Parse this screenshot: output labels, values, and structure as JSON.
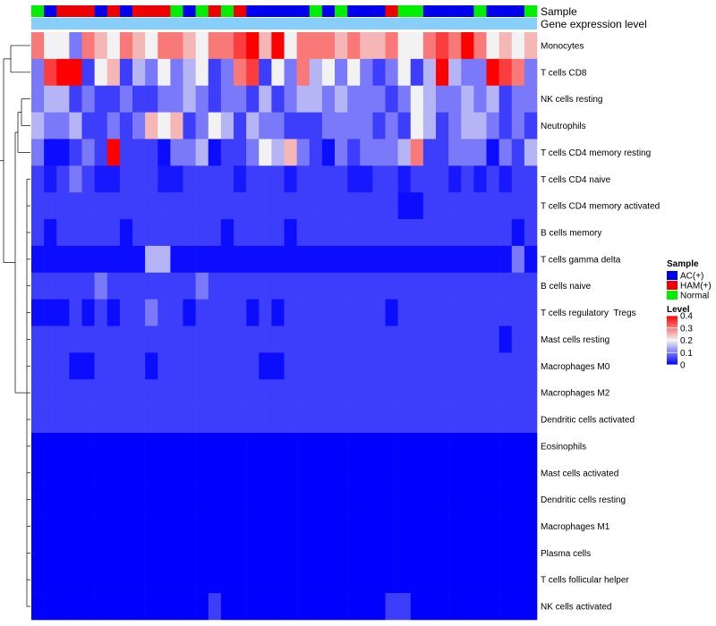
{
  "chart_data": {
    "type": "heatmap",
    "annotation_track_labels": [
      "Sample",
      "Gene expression level"
    ],
    "row_labels": [
      "Monocytes",
      "T cells CD8",
      "NK cells resting",
      "Neutrophils",
      "T cells CD4 memory resting",
      "T cells CD4 naive",
      "T cells CD4 memory activated",
      "B cells memory",
      "T cells gamma delta",
      "B cells naive",
      "T cells regulatory  Tregs",
      "Mast cells resting",
      "Macrophages M0",
      "Macrophages M2",
      "Dendritic cells activated",
      "Eosinophils",
      "Mast cells activated",
      "Dendritic cells resting",
      "Macrophages M1",
      "Plasma cells",
      "T cells follicular helper",
      "NK cells activated"
    ],
    "sample_groups": [
      "Normal",
      "AC(+)",
      "HAM(+)",
      "HAM(+)",
      "HAM(+)",
      "AC(+)",
      "HAM(+)",
      "AC(+)",
      "HAM(+)",
      "HAM(+)",
      "HAM(+)",
      "Normal",
      "AC(+)",
      "Normal",
      "HAM(+)",
      "Normal",
      "HAM(+)",
      "AC(+)",
      "AC(+)",
      "AC(+)",
      "AC(+)",
      "AC(+)",
      "Normal",
      "AC(+)",
      "Normal",
      "AC(+)",
      "AC(+)",
      "AC(+)",
      "HAM(+)",
      "Normal",
      "Normal",
      "AC(+)",
      "AC(+)",
      "AC(+)",
      "AC(+)",
      "Normal",
      "AC(+)",
      "AC(+)",
      "AC(+)",
      "Normal"
    ],
    "values": [
      [
        0.3,
        0.2,
        0.2,
        0.1,
        0.3,
        0.25,
        0.2,
        0.3,
        0.25,
        0.2,
        0.3,
        0.3,
        0.25,
        0.2,
        0.3,
        0.3,
        0.35,
        0.4,
        0.25,
        0.4,
        0.2,
        0.3,
        0.3,
        0.3,
        0.25,
        0.3,
        0.25,
        0.25,
        0.3,
        0.2,
        0.2,
        0.3,
        0.35,
        0.3,
        0.4,
        0.3,
        0.2,
        0.25,
        0.2,
        0.25
      ],
      [
        0.1,
        0.35,
        0.4,
        0.4,
        0.05,
        0.2,
        0.25,
        0.05,
        0.15,
        0.1,
        0.2,
        0.1,
        0.15,
        0.2,
        0.05,
        0.1,
        0.3,
        0.35,
        0.05,
        0.2,
        0.1,
        0.3,
        0.15,
        0.2,
        0.1,
        0.2,
        0.1,
        0.05,
        0.1,
        0.2,
        0.05,
        0.15,
        0.4,
        0.15,
        0.1,
        0.1,
        0.4,
        0.35,
        0.3,
        0.1
      ],
      [
        0.1,
        0.15,
        0.15,
        0.05,
        0.1,
        0.05,
        0.05,
        0.1,
        0.05,
        0.05,
        0.1,
        0.1,
        0.15,
        0.1,
        0.05,
        0.1,
        0.1,
        0.05,
        0.15,
        0.05,
        0.1,
        0.15,
        0.15,
        0.1,
        0.15,
        0.1,
        0.1,
        0.1,
        0.05,
        0.1,
        0.2,
        0.15,
        0.1,
        0.1,
        0.15,
        0.1,
        0.15,
        0.05,
        0.1,
        0.1
      ],
      [
        0.15,
        0.1,
        0.1,
        0.15,
        0.05,
        0.05,
        0.1,
        0.05,
        0.1,
        0.25,
        0.2,
        0.25,
        0.05,
        0.1,
        0.2,
        0.15,
        0.05,
        0.15,
        0.1,
        0.1,
        0.05,
        0.05,
        0.05,
        0.1,
        0.1,
        0.1,
        0.1,
        0.05,
        0.1,
        0.05,
        0.2,
        0.15,
        0.05,
        0.1,
        0.15,
        0.15,
        0.1,
        0.05,
        0.1,
        0.05
      ],
      [
        0.1,
        0.01,
        0.01,
        0.05,
        0.1,
        0.05,
        0.4,
        0.05,
        0.05,
        0.05,
        0.01,
        0.1,
        0.1,
        0.15,
        0.01,
        0.05,
        0.05,
        0.1,
        0.2,
        0.15,
        0.25,
        0.1,
        0.05,
        0.01,
        0.1,
        0.05,
        0.1,
        0.1,
        0.1,
        0.15,
        0.3,
        0.05,
        0.05,
        0.1,
        0.1,
        0.1,
        0.01,
        0.1,
        0.05,
        0.15
      ],
      [
        0.05,
        0.02,
        0.05,
        0.1,
        0.05,
        0.02,
        0.02,
        0.05,
        0.05,
        0.05,
        0.02,
        0.02,
        0.05,
        0.05,
        0.05,
        0.05,
        0.02,
        0.05,
        0.05,
        0.05,
        0.02,
        0.05,
        0.05,
        0.05,
        0.05,
        0.02,
        0.02,
        0.05,
        0.05,
        0.02,
        0.05,
        0.05,
        0.05,
        0.02,
        0.05,
        0.02,
        0.05,
        0.02,
        0.05,
        0.05
      ],
      [
        0.05,
        0.05,
        0.05,
        0.05,
        0.05,
        0.05,
        0.05,
        0.05,
        0.05,
        0.05,
        0.05,
        0.05,
        0.05,
        0.05,
        0.05,
        0.05,
        0.05,
        0.05,
        0.05,
        0.05,
        0.05,
        0.05,
        0.05,
        0.05,
        0.05,
        0.05,
        0.05,
        0.05,
        0.05,
        0.01,
        0.01,
        0.05,
        0.05,
        0.05,
        0.05,
        0.05,
        0.05,
        0.05,
        0.05,
        0.05
      ],
      [
        0.05,
        0.01,
        0.05,
        0.05,
        0.05,
        0.05,
        0.05,
        0.01,
        0.05,
        0.05,
        0.05,
        0.05,
        0.05,
        0.05,
        0.05,
        0.01,
        0.05,
        0.05,
        0.05,
        0.05,
        0.01,
        0.05,
        0.05,
        0.05,
        0.05,
        0.05,
        0.05,
        0.05,
        0.05,
        0.05,
        0.05,
        0.05,
        0.05,
        0.05,
        0.05,
        0.05,
        0.05,
        0.05,
        0.01,
        0.05
      ],
      [
        0.01,
        0.01,
        0.01,
        0.01,
        0.01,
        0.01,
        0.01,
        0.01,
        0.01,
        0.15,
        0.15,
        0.01,
        0.01,
        0.01,
        0.01,
        0.01,
        0.01,
        0.01,
        0.01,
        0.01,
        0.01,
        0.01,
        0.01,
        0.01,
        0.01,
        0.01,
        0.01,
        0.01,
        0.01,
        0.01,
        0.01,
        0.01,
        0.01,
        0.01,
        0.01,
        0.01,
        0.01,
        0.01,
        0.1,
        0.01
      ],
      [
        0.05,
        0.05,
        0.05,
        0.05,
        0.05,
        0.1,
        0.05,
        0.05,
        0.05,
        0.05,
        0.05,
        0.05,
        0.05,
        0.1,
        0.05,
        0.05,
        0.05,
        0.05,
        0.05,
        0.05,
        0.05,
        0.05,
        0.05,
        0.05,
        0.05,
        0.05,
        0.05,
        0.05,
        0.05,
        0.05,
        0.05,
        0.05,
        0.05,
        0.05,
        0.05,
        0.05,
        0.05,
        0.05,
        0.05,
        0.05
      ],
      [
        0.01,
        0.01,
        0.01,
        0.05,
        0.01,
        0.05,
        0.01,
        0.05,
        0.05,
        0.1,
        0.05,
        0.05,
        0.01,
        0.05,
        0.05,
        0.05,
        0.05,
        0.01,
        0.05,
        0.01,
        0.05,
        0.05,
        0.05,
        0.05,
        0.05,
        0.05,
        0.05,
        0.05,
        0.01,
        0.05,
        0.05,
        0.05,
        0.05,
        0.05,
        0.05,
        0.05,
        0.05,
        0.05,
        0.05,
        0.05
      ],
      [
        0.05,
        0.05,
        0.05,
        0.05,
        0.05,
        0.05,
        0.05,
        0.05,
        0.05,
        0.05,
        0.05,
        0.05,
        0.05,
        0.05,
        0.05,
        0.05,
        0.05,
        0.05,
        0.05,
        0.05,
        0.05,
        0.05,
        0.05,
        0.05,
        0.05,
        0.05,
        0.05,
        0.05,
        0.05,
        0.05,
        0.05,
        0.05,
        0.05,
        0.05,
        0.05,
        0.05,
        0.05,
        0.01,
        0.05,
        0.05
      ],
      [
        0.05,
        0.05,
        0.05,
        0.01,
        0.01,
        0.05,
        0.05,
        0.05,
        0.05,
        0.01,
        0.05,
        0.05,
        0.05,
        0.05,
        0.05,
        0.05,
        0.05,
        0.05,
        0.01,
        0.01,
        0.05,
        0.05,
        0.05,
        0.05,
        0.05,
        0.05,
        0.05,
        0.05,
        0.05,
        0.05,
        0.05,
        0.05,
        0.05,
        0.05,
        0.05,
        0.05,
        0.05,
        0.05,
        0.05,
        0.05
      ],
      [
        0.05,
        0.05,
        0.05,
        0.05,
        0.05,
        0.05,
        0.05,
        0.05,
        0.05,
        0.05,
        0.05,
        0.05,
        0.05,
        0.05,
        0.05,
        0.05,
        0.05,
        0.05,
        0.05,
        0.05,
        0.05,
        0.05,
        0.05,
        0.05,
        0.05,
        0.05,
        0.05,
        0.05,
        0.05,
        0.05,
        0.05,
        0.05,
        0.05,
        0.05,
        0.05,
        0.05,
        0.05,
        0.05,
        0.05,
        0.05
      ],
      [
        0.05,
        0.05,
        0.05,
        0.05,
        0.05,
        0.05,
        0.05,
        0.05,
        0.05,
        0.05,
        0.05,
        0.05,
        0.05,
        0.05,
        0.05,
        0.05,
        0.05,
        0.05,
        0.05,
        0.05,
        0.05,
        0.05,
        0.05,
        0.05,
        0.05,
        0.05,
        0.05,
        0.05,
        0.05,
        0.05,
        0.05,
        0.05,
        0.05,
        0.05,
        0.05,
        0.05,
        0.05,
        0.05,
        0.05,
        0.05
      ],
      [
        0,
        0,
        0,
        0,
        0,
        0,
        0,
        0,
        0,
        0,
        0,
        0,
        0,
        0,
        0,
        0,
        0,
        0,
        0,
        0,
        0,
        0,
        0,
        0,
        0,
        0,
        0,
        0,
        0,
        0,
        0,
        0,
        0,
        0,
        0,
        0,
        0,
        0,
        0,
        0
      ],
      [
        0,
        0,
        0,
        0,
        0,
        0,
        0,
        0,
        0,
        0,
        0,
        0,
        0,
        0,
        0,
        0,
        0,
        0,
        0,
        0,
        0,
        0,
        0,
        0,
        0,
        0,
        0,
        0,
        0,
        0,
        0,
        0,
        0,
        0,
        0,
        0,
        0,
        0,
        0,
        0
      ],
      [
        0,
        0,
        0,
        0,
        0,
        0,
        0,
        0,
        0,
        0,
        0,
        0,
        0,
        0,
        0,
        0,
        0,
        0,
        0,
        0,
        0,
        0,
        0,
        0,
        0,
        0,
        0,
        0,
        0,
        0,
        0,
        0,
        0,
        0,
        0,
        0,
        0,
        0,
        0,
        0
      ],
      [
        0,
        0,
        0,
        0,
        0,
        0,
        0,
        0,
        0,
        0,
        0,
        0,
        0,
        0,
        0,
        0,
        0,
        0,
        0,
        0,
        0,
        0,
        0,
        0,
        0,
        0,
        0,
        0,
        0,
        0,
        0,
        0,
        0,
        0,
        0,
        0,
        0,
        0,
        0,
        0
      ],
      [
        0,
        0,
        0,
        0,
        0,
        0,
        0,
        0,
        0,
        0,
        0,
        0,
        0,
        0,
        0,
        0,
        0,
        0,
        0,
        0,
        0,
        0,
        0,
        0,
        0,
        0,
        0,
        0,
        0,
        0,
        0,
        0,
        0,
        0,
        0,
        0,
        0,
        0,
        0,
        0
      ],
      [
        0,
        0,
        0,
        0,
        0,
        0,
        0,
        0,
        0,
        0,
        0,
        0,
        0,
        0,
        0,
        0,
        0,
        0,
        0,
        0,
        0,
        0,
        0,
        0,
        0,
        0,
        0,
        0,
        0,
        0,
        0,
        0,
        0,
        0,
        0,
        0,
        0,
        0,
        0,
        0
      ],
      [
        0,
        0,
        0,
        0,
        0,
        0,
        0,
        0,
        0,
        0,
        0,
        0,
        0,
        0,
        0.05,
        0,
        0,
        0,
        0,
        0,
        0,
        0,
        0,
        0,
        0,
        0,
        0,
        0,
        0.05,
        0.05,
        0,
        0,
        0,
        0,
        0,
        0,
        0,
        0,
        0,
        0
      ]
    ],
    "legends": {
      "sample_title": "Sample",
      "sample_items": [
        {
          "label": "AC(+)",
          "color": "#0000ee"
        },
        {
          "label": "HAM(+)",
          "color": "#ee0000"
        },
        {
          "label": "Normal",
          "color": "#00ee00"
        }
      ],
      "level_title": "Level",
      "level_ticks": [
        "0.4",
        "0.3",
        "0.2",
        "0.1",
        "0"
      ],
      "level_tick_values": [
        0.4,
        0.3,
        0.2,
        0.1,
        0
      ],
      "color_scale": {
        "low": "#0000ff",
        "mid": "#f2f2f2",
        "high": "#ff0000",
        "range": [
          0,
          0.4
        ]
      }
    },
    "gene_expression_track_color": "#87cefa"
  }
}
